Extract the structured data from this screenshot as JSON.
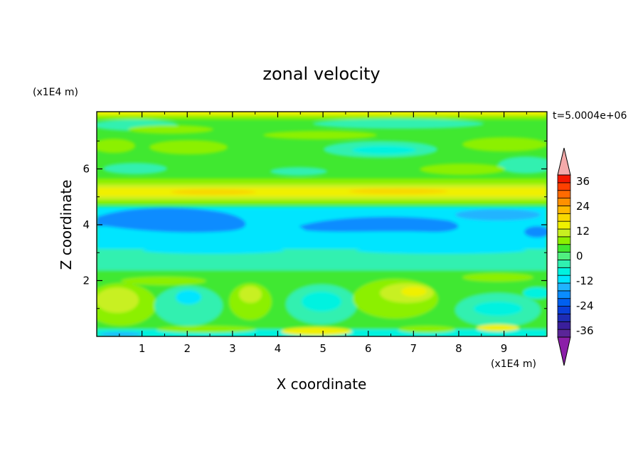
{
  "chart_data": {
    "type": "heatmap",
    "title": "zonal velocity",
    "xlabel": "X coordinate",
    "ylabel": "Z coordinate",
    "x_unit": "(x1E4 m)",
    "y_unit": "(x1E4 m)",
    "time_label": "t=5.0004e+06",
    "xlim": [
      0,
      9.95
    ],
    "ylim": [
      0,
      8.05
    ],
    "x_ticks": [
      "1",
      "2",
      "3",
      "4",
      "5",
      "6",
      "7",
      "8",
      "9"
    ],
    "y_ticks": [
      "2",
      "4",
      "6"
    ],
    "colorbar": {
      "levels": [
        -42,
        -39,
        -36,
        -33,
        -30,
        -27,
        -24,
        -21,
        -18,
        -15,
        -12,
        -9,
        -6,
        -3,
        0,
        3,
        6,
        9,
        12,
        15,
        18,
        21,
        24,
        27,
        30,
        33,
        36,
        39,
        42
      ],
      "colors": [
        "#8b1fa8",
        "#5a2598",
        "#3a1f9c",
        "#1e2cb5",
        "#0a3fd8",
        "#0060f0",
        "#0a8cff",
        "#20b4ff",
        "#00e5ff",
        "#00f2e0",
        "#30f0b0",
        "#50f080",
        "#40e830",
        "#8cf000",
        "#c8f020",
        "#f0f000",
        "#f8d800",
        "#ffb800",
        "#ff9000",
        "#ff6a00",
        "#ff4000",
        "#f41800",
        "#f4aaaa"
      ],
      "labels": [
        "36",
        "24",
        "12",
        "0",
        "-12",
        "-24",
        "-36"
      ],
      "under_color": "#8b1fa8",
      "over_color": "#f4aaaa"
    }
  }
}
